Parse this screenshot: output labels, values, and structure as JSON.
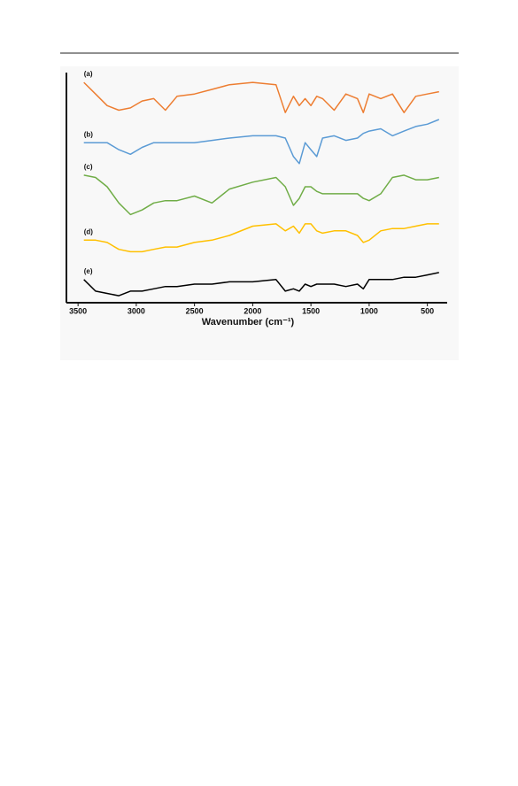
{
  "chart_data": {
    "type": "line",
    "x_label": "Wavenumber (cm⁻¹)",
    "xlim": [
      3600,
      330
    ],
    "xticks": [
      3500,
      3000,
      2500,
      2000,
      1500,
      1000,
      500
    ],
    "ylim": [
      0,
      100
    ],
    "x": [
      3450,
      3350,
      3250,
      3150,
      3050,
      2950,
      2850,
      2750,
      2650,
      2500,
      2350,
      2200,
      2000,
      1800,
      1720,
      1650,
      1600,
      1550,
      1500,
      1450,
      1400,
      1300,
      1200,
      1100,
      1050,
      1000,
      900,
      800,
      700,
      600,
      500,
      400
    ],
    "series": [
      {
        "name": "(a)",
        "color": "#ed7d31",
        "values": [
          95,
          90,
          85,
          83,
          84,
          87,
          88,
          83,
          89,
          90,
          92,
          94,
          95,
          94,
          82,
          89,
          85,
          88,
          85,
          89,
          88,
          83,
          90,
          88,
          82,
          90,
          88,
          90,
          82,
          89,
          90,
          91
        ]
      },
      {
        "name": "(b)",
        "color": "#5b9bd5",
        "values": [
          69,
          69,
          69,
          66,
          64,
          67,
          69,
          69,
          69,
          69,
          70,
          71,
          72,
          72,
          71,
          63,
          60,
          69,
          66,
          63,
          71,
          72,
          70,
          71,
          73,
          74,
          75,
          72,
          74,
          76,
          77,
          79
        ]
      },
      {
        "name": "(c)",
        "color": "#70ad47",
        "values": [
          55,
          54,
          50,
          43,
          38,
          40,
          43,
          44,
          44,
          46,
          43,
          49,
          52,
          54,
          50,
          42,
          45,
          50,
          50,
          48,
          47,
          47,
          47,
          47,
          45,
          44,
          47,
          54,
          55,
          53,
          53,
          54
        ]
      },
      {
        "name": "(d)",
        "color": "#ffc000",
        "values": [
          27,
          27,
          26,
          23,
          22,
          22,
          23,
          24,
          24,
          26,
          27,
          29,
          33,
          34,
          31,
          33,
          30,
          34,
          34,
          31,
          30,
          31,
          31,
          29,
          26,
          27,
          31,
          32,
          32,
          33,
          34,
          34
        ]
      },
      {
        "name": "(e)",
        "color": "#000000",
        "values": [
          10,
          5,
          4,
          3,
          5,
          5,
          6,
          7,
          7,
          8,
          8,
          9,
          9,
          10,
          5,
          6,
          5,
          8,
          7,
          8,
          8,
          8,
          7,
          8,
          6,
          10,
          10,
          10,
          11,
          11,
          12,
          13
        ]
      }
    ]
  }
}
